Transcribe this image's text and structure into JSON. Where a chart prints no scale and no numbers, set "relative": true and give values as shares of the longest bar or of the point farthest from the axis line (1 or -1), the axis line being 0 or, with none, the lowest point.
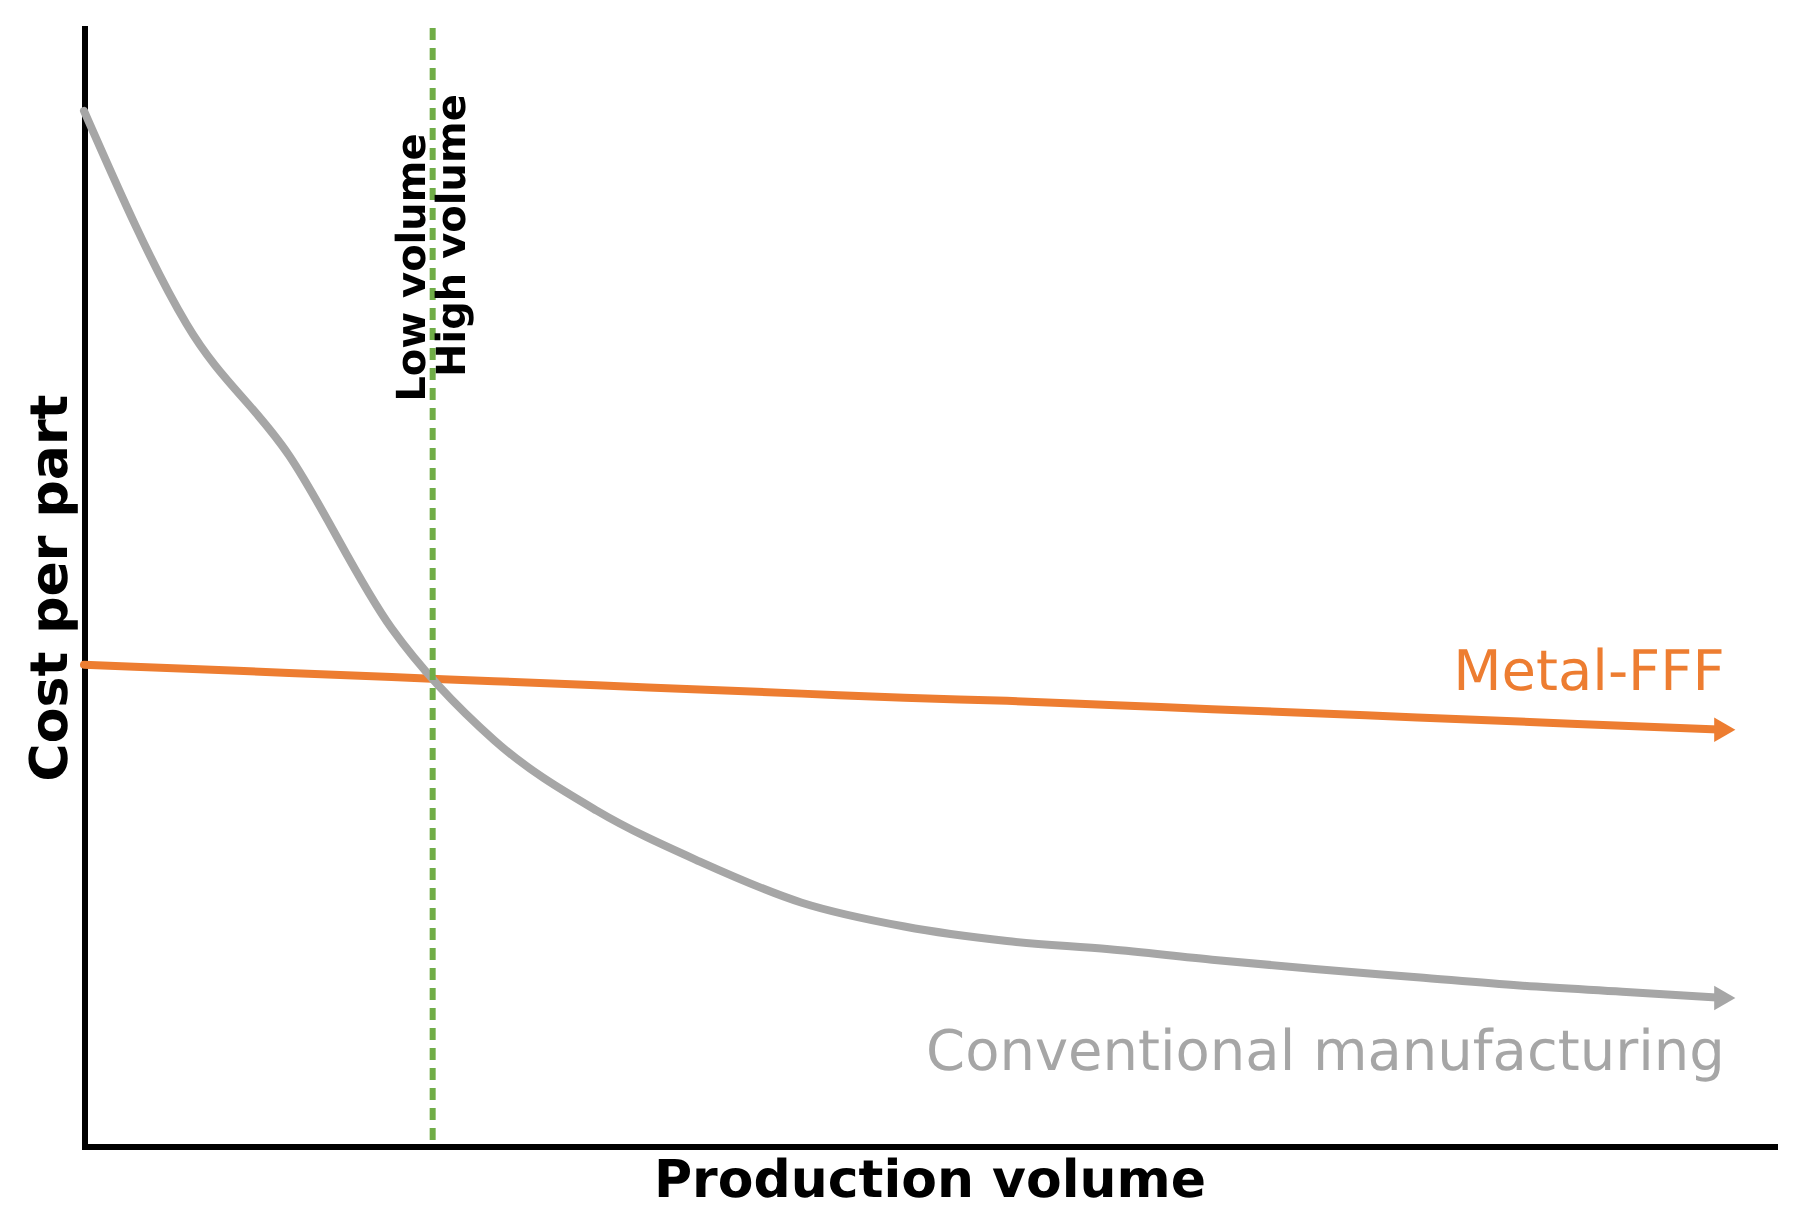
{
  "chart_data": {
    "type": "line",
    "relative": true,
    "xlabel": "Production volume",
    "ylabel": "Cost per part",
    "categories": [
      null,
      null,
      null,
      null,
      null,
      null,
      null,
      null,
      null,
      null,
      null,
      null,
      null,
      null,
      null,
      null,
      null
    ],
    "series": [
      {
        "name": "Metal-FFF",
        "color": "#ed7d31",
        "values": [
          0.465,
          0.461,
          0.457,
          0.453,
          0.449,
          0.445,
          0.441,
          0.437,
          0.433,
          0.43,
          0.426,
          0.422,
          0.418,
          0.414,
          0.41,
          0.406,
          0.402
        ]
      },
      {
        "name": "Conventional manufacturing",
        "color": "#a6a6a6",
        "values": [
          1.0,
          0.794,
          0.667,
          0.5,
          0.392,
          0.324,
          0.275,
          0.235,
          0.212,
          0.198,
          0.19,
          0.18,
          0.171,
          0.163,
          0.155,
          0.149,
          0.143
        ]
      }
    ],
    "annotations": [
      "Low volume",
      "High volume"
    ],
    "grid": false,
    "marker": "none",
    "line_style": "solid"
  }
}
